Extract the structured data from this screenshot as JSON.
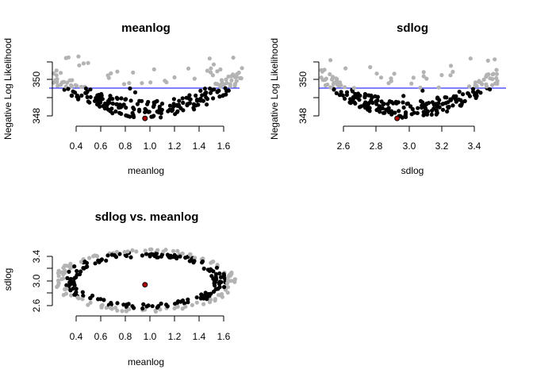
{
  "colors": {
    "accepted": "#000000",
    "rejected": "#b3b3b3",
    "best": "#aa0000",
    "threshold_line": "#0000ff"
  },
  "chart_data": [
    {
      "id": "meanlog",
      "type": "scatter",
      "title": "meanlog",
      "xlabel": "meanlog",
      "ylabel": "Negative Log Likelihood",
      "xticks": [
        "0.4",
        "0.6",
        "0.8",
        "1.0",
        "1.2",
        "1.4",
        "1.6"
      ],
      "yticks": [
        "348",
        "350"
      ],
      "xlim": [
        0.25,
        1.7
      ],
      "ylim": [
        347.3,
        351.7
      ],
      "threshold": 349.5,
      "best": {
        "x": 0.98,
        "y": 347.55
      }
    },
    {
      "id": "sdlog",
      "type": "scatter",
      "title": "sdlog",
      "xlabel": "sdlog",
      "ylabel": "Negative Log Likelihood",
      "xticks": [
        "2.6",
        "2.8",
        "3.0",
        "3.2",
        "3.4"
      ],
      "yticks": [
        "348",
        "350"
      ],
      "xlim": [
        2.44,
        3.6
      ],
      "ylim": [
        347.3,
        351.7
      ],
      "threshold": 349.5,
      "best": {
        "x": 2.925,
        "y": 347.55
      }
    },
    {
      "id": "sdlog_vs_meanlog",
      "type": "scatter",
      "title": "sdlog vs. meanlog",
      "xlabel": "meanlog",
      "ylabel": "sdlog",
      "xticks": [
        "0.4",
        "0.6",
        "0.8",
        "1.0",
        "1.2",
        "1.4",
        "1.6"
      ],
      "yticks": [
        "2.6",
        "3.0",
        "3.4"
      ],
      "xlim": [
        0.25,
        1.7
      ],
      "ylim": [
        2.47,
        3.52
      ],
      "best": {
        "x": 0.98,
        "y": 2.925
      }
    }
  ]
}
